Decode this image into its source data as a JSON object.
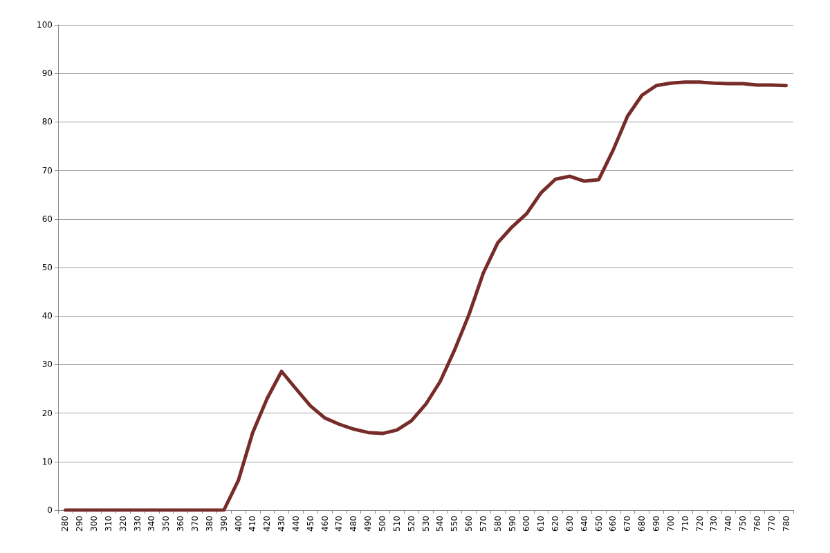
{
  "chart_data": {
    "type": "line",
    "categories": [
      "280",
      "290",
      "300",
      "310",
      "320",
      "330",
      "340",
      "350",
      "360",
      "370",
      "380",
      "390",
      "400",
      "410",
      "420",
      "430",
      "440",
      "450",
      "460",
      "470",
      "480",
      "490",
      "500",
      "510",
      "520",
      "530",
      "540",
      "550",
      "560",
      "570",
      "580",
      "590",
      "600",
      "610",
      "620",
      "630",
      "640",
      "650",
      "660",
      "670",
      "680",
      "690",
      "700",
      "710",
      "720",
      "730",
      "740",
      "750",
      "760",
      "770",
      "780"
    ],
    "series": [
      {
        "color": "#772c2a",
        "values": [
          0,
          0,
          0,
          0,
          0,
          0,
          0,
          0,
          0,
          0,
          0,
          0,
          6.1,
          16,
          23,
          28.6,
          25,
          21.5,
          19,
          17.7,
          16.7,
          16,
          15.8,
          16.5,
          18.4,
          21.8,
          26.5,
          33,
          40.3,
          48.9,
          55.1,
          58.4,
          61.1,
          65.4,
          68.2,
          68.8,
          67.8,
          68.1,
          74.2,
          81.2,
          85.5,
          87.5,
          88,
          88.2,
          88.2,
          88,
          87.9,
          87.9,
          87.6,
          87.6,
          87.5
        ]
      }
    ],
    "ylim": [
      0,
      100
    ],
    "yticks": [
      0,
      10,
      20,
      30,
      40,
      50,
      60,
      70,
      80,
      90,
      100
    ],
    "grid": "y",
    "marker": "none",
    "line_style": "solid"
  }
}
